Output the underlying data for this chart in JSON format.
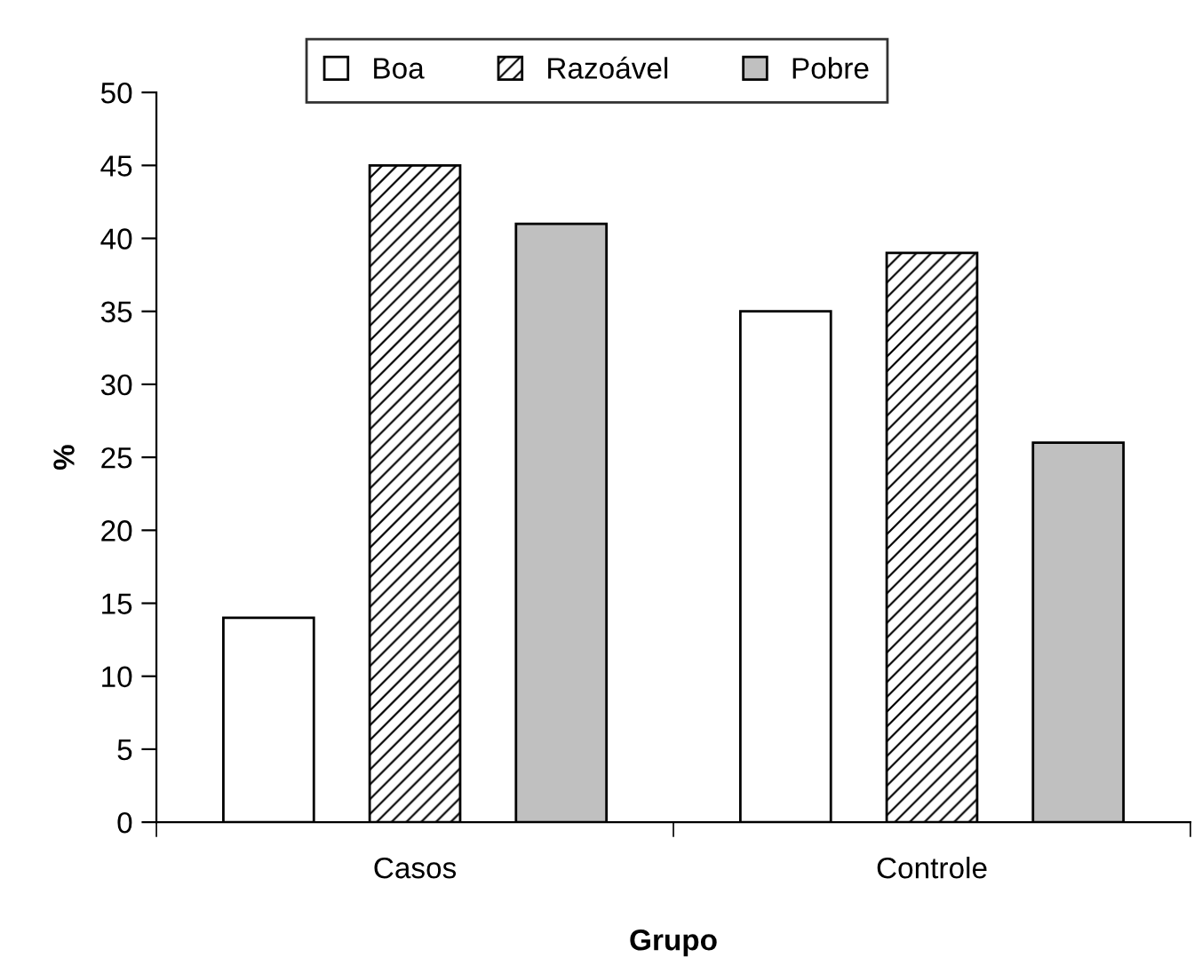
{
  "chart_data": {
    "type": "bar",
    "xlabel": "Grupo",
    "ylabel": "%",
    "categories": [
      "Casos",
      "Controle"
    ],
    "series": [
      {
        "name": "Boa",
        "color": "#ffffff",
        "values": [
          14,
          35
        ]
      },
      {
        "name": "Razoável",
        "color": "#000000",
        "values": [
          45,
          39
        ]
      },
      {
        "name": "Pobre",
        "color": "#c0c0c0",
        "values": [
          41,
          26
        ]
      }
    ],
    "ylim": [
      0,
      50
    ],
    "yticks": [
      0,
      5,
      10,
      15,
      20,
      25,
      30,
      35,
      40,
      45,
      50
    ],
    "grid": false,
    "legend": "top"
  }
}
